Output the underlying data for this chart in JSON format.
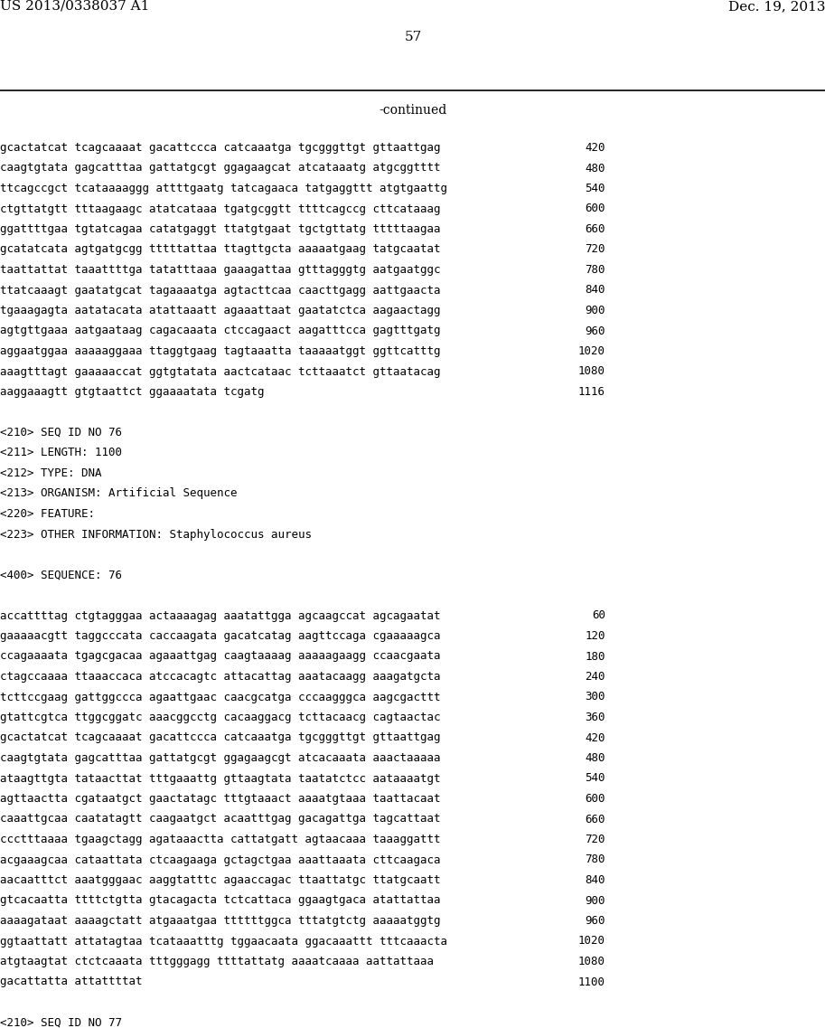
{
  "header_left": "US 2013/0338037 A1",
  "header_right": "Dec. 19, 2013",
  "page_number": "57",
  "continued_label": "-continued",
  "background_color": "#ffffff",
  "text_color": "#000000",
  "lines": [
    {
      "text": "gcactatcat tcagcaaaat gacattccca catcaaatga tgcgggttgt gttaattgag",
      "num": "420"
    },
    {
      "text": "caagtgtata gagcatttaa gattatgcgt ggagaagcat atcataaatg atgcggtttt",
      "num": "480"
    },
    {
      "text": "ttcagccgct tcataaaaggg attttgaatg tatcagaaca tatgaggttt atgtgaattg",
      "num": "540"
    },
    {
      "text": "ctgttatgtt tttaagaagc atatcataaa tgatgcggtt ttttcagccg cttcataaag",
      "num": "600"
    },
    {
      "text": "ggattttgaa tgtatcagaa catatgaggt ttatgtgaat tgctgttatg tttttaagaa",
      "num": "660"
    },
    {
      "text": "gcatatcata agtgatgcgg tttttattaa ttagttgcta aaaaatgaag tatgcaatat",
      "num": "720"
    },
    {
      "text": "taattattat taaattttga tatatttaaa gaaagattaa gtttagggtg aatgaatggc",
      "num": "780"
    },
    {
      "text": "ttatcaaagt gaatatgcat tagaaaatga agtacttcaa caacttgagg aattgaacta",
      "num": "840"
    },
    {
      "text": "tgaaagagta aatatacata atattaaatt agaaattaat gaatatctca aagaactagg",
      "num": "900"
    },
    {
      "text": "agtgttgaaa aatgaataag cagacaaata ctccagaact aagatttcca gagtttgatg",
      "num": "960"
    },
    {
      "text": "aggaatggaa aaaaaggaaa ttaggtgaag tagtaaatta taaaaatggt ggttcatttg",
      "num": "1020"
    },
    {
      "text": "aaagtttagt gaaaaaccat ggtgtatata aactcataac tcttaaatct gttaatacag",
      "num": "1080"
    },
    {
      "text": "aaggaaagtt gtgtaattct ggaaaatata tcgatg",
      "num": "1116"
    },
    {
      "text": "",
      "num": ""
    },
    {
      "text": "<210> SEQ ID NO 76",
      "num": "",
      "mono": true
    },
    {
      "text": "<211> LENGTH: 1100",
      "num": "",
      "mono": true
    },
    {
      "text": "<212> TYPE: DNA",
      "num": "",
      "mono": true
    },
    {
      "text": "<213> ORGANISM: Artificial Sequence",
      "num": "",
      "mono": true
    },
    {
      "text": "<220> FEATURE:",
      "num": "",
      "mono": true
    },
    {
      "text": "<223> OTHER INFORMATION: Staphylococcus aureus",
      "num": "",
      "mono": true
    },
    {
      "text": "",
      "num": ""
    },
    {
      "text": "<400> SEQUENCE: 76",
      "num": "",
      "mono": true
    },
    {
      "text": "",
      "num": ""
    },
    {
      "text": "accattttag ctgtagggaa actaaaagag aaatattgga agcaagccat agcagaatat",
      "num": "60"
    },
    {
      "text": "gaaaaacgtt taggcccata caccaagata gacatcatag aagttccaga cgaaaaagca",
      "num": "120"
    },
    {
      "text": "ccagaaaata tgagcgacaa agaaattgag caagtaaaag aaaaagaagg ccaacgaata",
      "num": "180"
    },
    {
      "text": "ctagccaaaa ttaaaccaca atccacagtc attacattag aaatacaagg aaagatgcta",
      "num": "240"
    },
    {
      "text": "tcttccgaag gattggccca agaattgaac caacgcatga cccaagggca aagcgacttt",
      "num": "300"
    },
    {
      "text": "gtattcgtca ttggcggatc aaacggcctg cacaaggacg tcttacaacg cagtaactac",
      "num": "360"
    },
    {
      "text": "gcactatcat tcagcaaaat gacattccca catcaaatga tgcgggttgt gttaattgag",
      "num": "420"
    },
    {
      "text": "caagtgtata gagcatttaa gattatgcgt ggagaagcgt atcacaaata aaactaaaaa",
      "num": "480"
    },
    {
      "text": "ataagttgta tataacttat tttgaaattg gttaagtata taatatctcc aataaaatgt",
      "num": "540"
    },
    {
      "text": "agttaactta cgataatgct gaactatagc tttgtaaact aaaatgtaaa taattacaat",
      "num": "600"
    },
    {
      "text": "caaattgcaa caatatagtt caagaatgct acaatttgag gacagattga tagcattaat",
      "num": "660"
    },
    {
      "text": "ccctttaaaa tgaagctagg agataaactta cattatgatt agtaacaaa taaaggattt",
      "num": "720"
    },
    {
      "text": "acgaaagcaa cataattata ctcaagaaga gctagctgaa aaattaaata cttcaagaca",
      "num": "780"
    },
    {
      "text": "aacaatttct aaatgggaac aaggtatttc agaaccagac ttaattatgc ttatgcaatt",
      "num": "840"
    },
    {
      "text": "gtcacaatta ttttctgtta gtacagacta tctcattaca ggaagtgaca atattattaa",
      "num": "900"
    },
    {
      "text": "aaaagataat aaaagctatt atgaaatgaa ttttttggca tttatgtctg aaaaatggtg",
      "num": "960"
    },
    {
      "text": "ggtaattatt attatagtaa tcataaatttg tggaacaata ggacaaattt tttcaaacta",
      "num": "1020"
    },
    {
      "text": "atgtaagtat ctctcaaata tttgggagg ttttattatg aaaatcaaaa aattattaaa",
      "num": "1080"
    },
    {
      "text": "gacattatta attattttat",
      "num": "1100"
    },
    {
      "text": "",
      "num": ""
    },
    {
      "text": "<210> SEQ ID NO 77",
      "num": "",
      "mono": true
    }
  ]
}
